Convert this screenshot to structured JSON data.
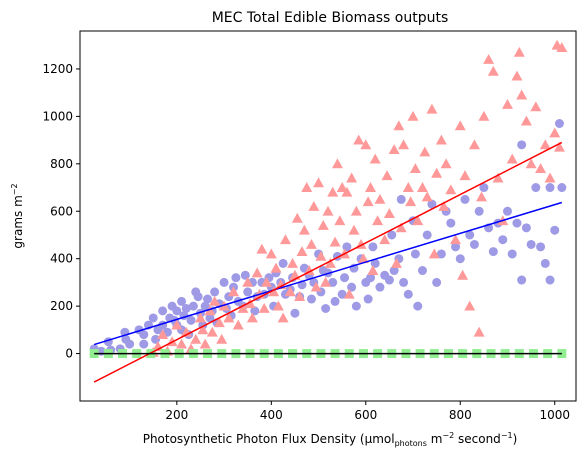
{
  "chart_data": {
    "type": "scatter",
    "title": "MEC Total Edible Biomass outputs",
    "xlabel_parts": {
      "main": "Photosynthetic Photon Flux Density (µmol",
      "sub": "photons",
      "mid": " m",
      "sup1": "−2",
      "tail": " second",
      "sup2": "−1",
      "close": ")"
    },
    "ylabel_parts": {
      "main": "grams m",
      "sup": "−2"
    },
    "xlim": [
      -5,
      1045
    ],
    "ylim": [
      -200,
      1360
    ],
    "xticks": [
      200,
      400,
      600,
      800,
      1000
    ],
    "yticks": [
      0,
      200,
      400,
      600,
      800,
      1000,
      1200
    ],
    "grid": false,
    "colors": {
      "purple": "#9e9ae6",
      "pink": "#ff9999",
      "green": "#90ee90",
      "blue": "#0000ff",
      "red": "#ff0000"
    },
    "series": [
      {
        "marker": "circle",
        "color": "#9e9ae6",
        "points": [
          [
            25,
            20
          ],
          [
            40,
            10
          ],
          [
            55,
            50
          ],
          [
            60,
            15
          ],
          [
            80,
            20
          ],
          [
            90,
            90
          ],
          [
            92,
            60
          ],
          [
            100,
            40
          ],
          [
            120,
            100
          ],
          [
            130,
            80
          ],
          [
            130,
            40
          ],
          [
            140,
            120
          ],
          [
            150,
            150
          ],
          [
            155,
            60
          ],
          [
            160,
            100
          ],
          [
            170,
            120
          ],
          [
            170,
            180
          ],
          [
            180,
            90
          ],
          [
            185,
            150
          ],
          [
            190,
            200
          ],
          [
            195,
            140
          ],
          [
            200,
            120
          ],
          [
            200,
            180
          ],
          [
            210,
            100
          ],
          [
            210,
            220
          ],
          [
            215,
            160
          ],
          [
            220,
            190
          ],
          [
            225,
            80
          ],
          [
            230,
            140
          ],
          [
            235,
            200
          ],
          [
            240,
            260
          ],
          [
            245,
            240
          ],
          [
            250,
            170
          ],
          [
            255,
            120
          ],
          [
            260,
            200
          ],
          [
            265,
            230
          ],
          [
            270,
            150
          ],
          [
            275,
            180
          ],
          [
            280,
            260
          ],
          [
            285,
            130
          ],
          [
            290,
            210
          ],
          [
            300,
            300
          ],
          [
            305,
            190
          ],
          [
            310,
            240
          ],
          [
            315,
            160
          ],
          [
            320,
            280
          ],
          [
            325,
            320
          ],
          [
            330,
            220
          ],
          [
            340,
            200
          ],
          [
            345,
            330
          ],
          [
            350,
            260
          ],
          [
            360,
            300
          ],
          [
            365,
            180
          ],
          [
            370,
            240
          ],
          [
            380,
            300
          ],
          [
            385,
            250
          ],
          [
            395,
            320
          ],
          [
            400,
            280
          ],
          [
            405,
            200
          ],
          [
            410,
            340
          ],
          [
            420,
            300
          ],
          [
            425,
            380
          ],
          [
            430,
            250
          ],
          [
            440,
            270
          ],
          [
            445,
            320
          ],
          [
            450,
            170
          ],
          [
            460,
            240
          ],
          [
            465,
            290
          ],
          [
            470,
            360
          ],
          [
            480,
            330
          ],
          [
            485,
            230
          ],
          [
            490,
            300
          ],
          [
            500,
            420
          ],
          [
            505,
            260
          ],
          [
            510,
            350
          ],
          [
            515,
            190
          ],
          [
            520,
            340
          ],
          [
            530,
            300
          ],
          [
            535,
            220
          ],
          [
            540,
            410
          ],
          [
            550,
            250
          ],
          [
            555,
            320
          ],
          [
            560,
            450
          ],
          [
            570,
            280
          ],
          [
            575,
            360
          ],
          [
            580,
            200
          ],
          [
            590,
            400
          ],
          [
            600,
            300
          ],
          [
            605,
            230
          ],
          [
            610,
            320
          ],
          [
            615,
            450
          ],
          [
            620,
            380
          ],
          [
            630,
            280
          ],
          [
            640,
            330
          ],
          [
            650,
            310
          ],
          [
            655,
            500
          ],
          [
            660,
            350
          ],
          [
            670,
            400
          ],
          [
            675,
            650
          ],
          [
            680,
            300
          ],
          [
            690,
            250
          ],
          [
            700,
            560
          ],
          [
            705,
            420
          ],
          [
            710,
            200
          ],
          [
            720,
            350
          ],
          [
            730,
            500
          ],
          [
            740,
            630
          ],
          [
            750,
            300
          ],
          [
            760,
            420
          ],
          [
            770,
            600
          ],
          [
            780,
            550
          ],
          [
            790,
            450
          ],
          [
            800,
            400
          ],
          [
            810,
            650
          ],
          [
            820,
            500
          ],
          [
            830,
            460
          ],
          [
            840,
            600
          ],
          [
            850,
            700
          ],
          [
            860,
            530
          ],
          [
            870,
            430
          ],
          [
            880,
            550
          ],
          [
            890,
            480
          ],
          [
            900,
            600
          ],
          [
            910,
            420
          ],
          [
            920,
            550
          ],
          [
            930,
            880
          ],
          [
            940,
            530
          ],
          [
            950,
            460
          ],
          [
            960,
            700
          ],
          [
            970,
            450
          ],
          [
            980,
            380
          ],
          [
            990,
            700
          ],
          [
            1000,
            520
          ],
          [
            1010,
            970
          ],
          [
            1015,
            700
          ],
          [
            930,
            310
          ],
          [
            990,
            310
          ]
        ]
      },
      {
        "marker": "triangle",
        "color": "#ff9999",
        "points": [
          [
            150,
            5
          ],
          [
            160,
            30
          ],
          [
            170,
            80
          ],
          [
            180,
            10
          ],
          [
            190,
            50
          ],
          [
            200,
            120
          ],
          [
            210,
            40
          ],
          [
            220,
            90
          ],
          [
            230,
            20
          ],
          [
            240,
            60
          ],
          [
            250,
            150
          ],
          [
            255,
            100
          ],
          [
            260,
            40
          ],
          [
            270,
            180
          ],
          [
            275,
            90
          ],
          [
            280,
            220
          ],
          [
            290,
            130
          ],
          [
            295,
            60
          ],
          [
            300,
            200
          ],
          [
            310,
            150
          ],
          [
            320,
            260
          ],
          [
            330,
            120
          ],
          [
            340,
            190
          ],
          [
            350,
            300
          ],
          [
            355,
            210
          ],
          [
            360,
            150
          ],
          [
            370,
            340
          ],
          [
            375,
            250
          ],
          [
            380,
            440
          ],
          [
            385,
            190
          ],
          [
            390,
            300
          ],
          [
            400,
            420
          ],
          [
            405,
            260
          ],
          [
            410,
            360
          ],
          [
            415,
            200
          ],
          [
            420,
            290
          ],
          [
            425,
            150
          ],
          [
            430,
            480
          ],
          [
            440,
            260
          ],
          [
            445,
            380
          ],
          [
            450,
            330
          ],
          [
            455,
            570
          ],
          [
            460,
            240
          ],
          [
            465,
            430
          ],
          [
            470,
            520
          ],
          [
            475,
            700
          ],
          [
            480,
            350
          ],
          [
            485,
            460
          ],
          [
            490,
            620
          ],
          [
            495,
            280
          ],
          [
            500,
            720
          ],
          [
            505,
            410
          ],
          [
            510,
            540
          ],
          [
            515,
            300
          ],
          [
            520,
            600
          ],
          [
            525,
            380
          ],
          [
            530,
            680
          ],
          [
            535,
            470
          ],
          [
            540,
            800
          ],
          [
            545,
            560
          ],
          [
            550,
            700
          ],
          [
            555,
            420
          ],
          [
            560,
            680
          ],
          [
            565,
            250
          ],
          [
            570,
            740
          ],
          [
            575,
            520
          ],
          [
            580,
            600
          ],
          [
            585,
            900
          ],
          [
            590,
            460
          ],
          [
            595,
            400
          ],
          [
            600,
            880
          ],
          [
            605,
            640
          ],
          [
            610,
            700
          ],
          [
            615,
            350
          ],
          [
            620,
            820
          ],
          [
            625,
            560
          ],
          [
            630,
            650
          ],
          [
            640,
            480
          ],
          [
            645,
            750
          ],
          [
            650,
            590
          ],
          [
            660,
            860
          ],
          [
            665,
            380
          ],
          [
            670,
            960
          ],
          [
            675,
            530
          ],
          [
            680,
            880
          ],
          [
            690,
            700
          ],
          [
            695,
            640
          ],
          [
            700,
            1000
          ],
          [
            705,
            780
          ],
          [
            710,
            560
          ],
          [
            720,
            700
          ],
          [
            725,
            850
          ],
          [
            730,
            660
          ],
          [
            740,
            1030
          ],
          [
            745,
            420
          ],
          [
            750,
            760
          ],
          [
            760,
            900
          ],
          [
            765,
            620
          ],
          [
            770,
            800
          ],
          [
            780,
            690
          ],
          [
            790,
            480
          ],
          [
            800,
            960
          ],
          [
            805,
            330
          ],
          [
            810,
            750
          ],
          [
            820,
            200
          ],
          [
            830,
            880
          ],
          [
            840,
            90
          ],
          [
            845,
            660
          ],
          [
            850,
            1000
          ],
          [
            860,
            1240
          ],
          [
            870,
            1190
          ],
          [
            880,
            740
          ],
          [
            890,
            560
          ],
          [
            900,
            1050
          ],
          [
            910,
            820
          ],
          [
            920,
            1170
          ],
          [
            925,
            1270
          ],
          [
            930,
            1090
          ],
          [
            940,
            980
          ],
          [
            950,
            800
          ],
          [
            960,
            1040
          ],
          [
            970,
            780
          ],
          [
            980,
            880
          ],
          [
            990,
            740
          ],
          [
            1000,
            930
          ],
          [
            1005,
            1300
          ],
          [
            1010,
            870
          ],
          [
            1015,
            1290
          ]
        ]
      },
      {
        "marker": "square",
        "color": "#90ee90",
        "points": [
          [
            25,
            0
          ],
          [
            55,
            0
          ],
          [
            85,
            0
          ],
          [
            115,
            0
          ],
          [
            145,
            0
          ],
          [
            175,
            0
          ],
          [
            205,
            0
          ],
          [
            235,
            0
          ],
          [
            265,
            0
          ],
          [
            295,
            0
          ],
          [
            325,
            0
          ],
          [
            355,
            0
          ],
          [
            385,
            0
          ],
          [
            415,
            0
          ],
          [
            445,
            0
          ],
          [
            475,
            0
          ],
          [
            505,
            0
          ],
          [
            535,
            0
          ],
          [
            565,
            0
          ],
          [
            595,
            0
          ],
          [
            625,
            0
          ],
          [
            655,
            0
          ],
          [
            685,
            0
          ],
          [
            715,
            0
          ],
          [
            745,
            0
          ],
          [
            775,
            0
          ],
          [
            805,
            0
          ],
          [
            835,
            0
          ],
          [
            865,
            0
          ],
          [
            895,
            0
          ],
          [
            925,
            0
          ],
          [
            955,
            0
          ],
          [
            985,
            0
          ],
          [
            1015,
            0
          ]
        ]
      }
    ],
    "lines": [
      {
        "color": "#0000ff",
        "points": [
          [
            25,
            38
          ],
          [
            1015,
            637
          ]
        ]
      },
      {
        "color": "#ff0000",
        "points": [
          [
            25,
            -120
          ],
          [
            1015,
            890
          ]
        ]
      },
      {
        "color": "#000000",
        "points": [
          [
            25,
            0
          ],
          [
            1015,
            0
          ]
        ]
      }
    ]
  }
}
